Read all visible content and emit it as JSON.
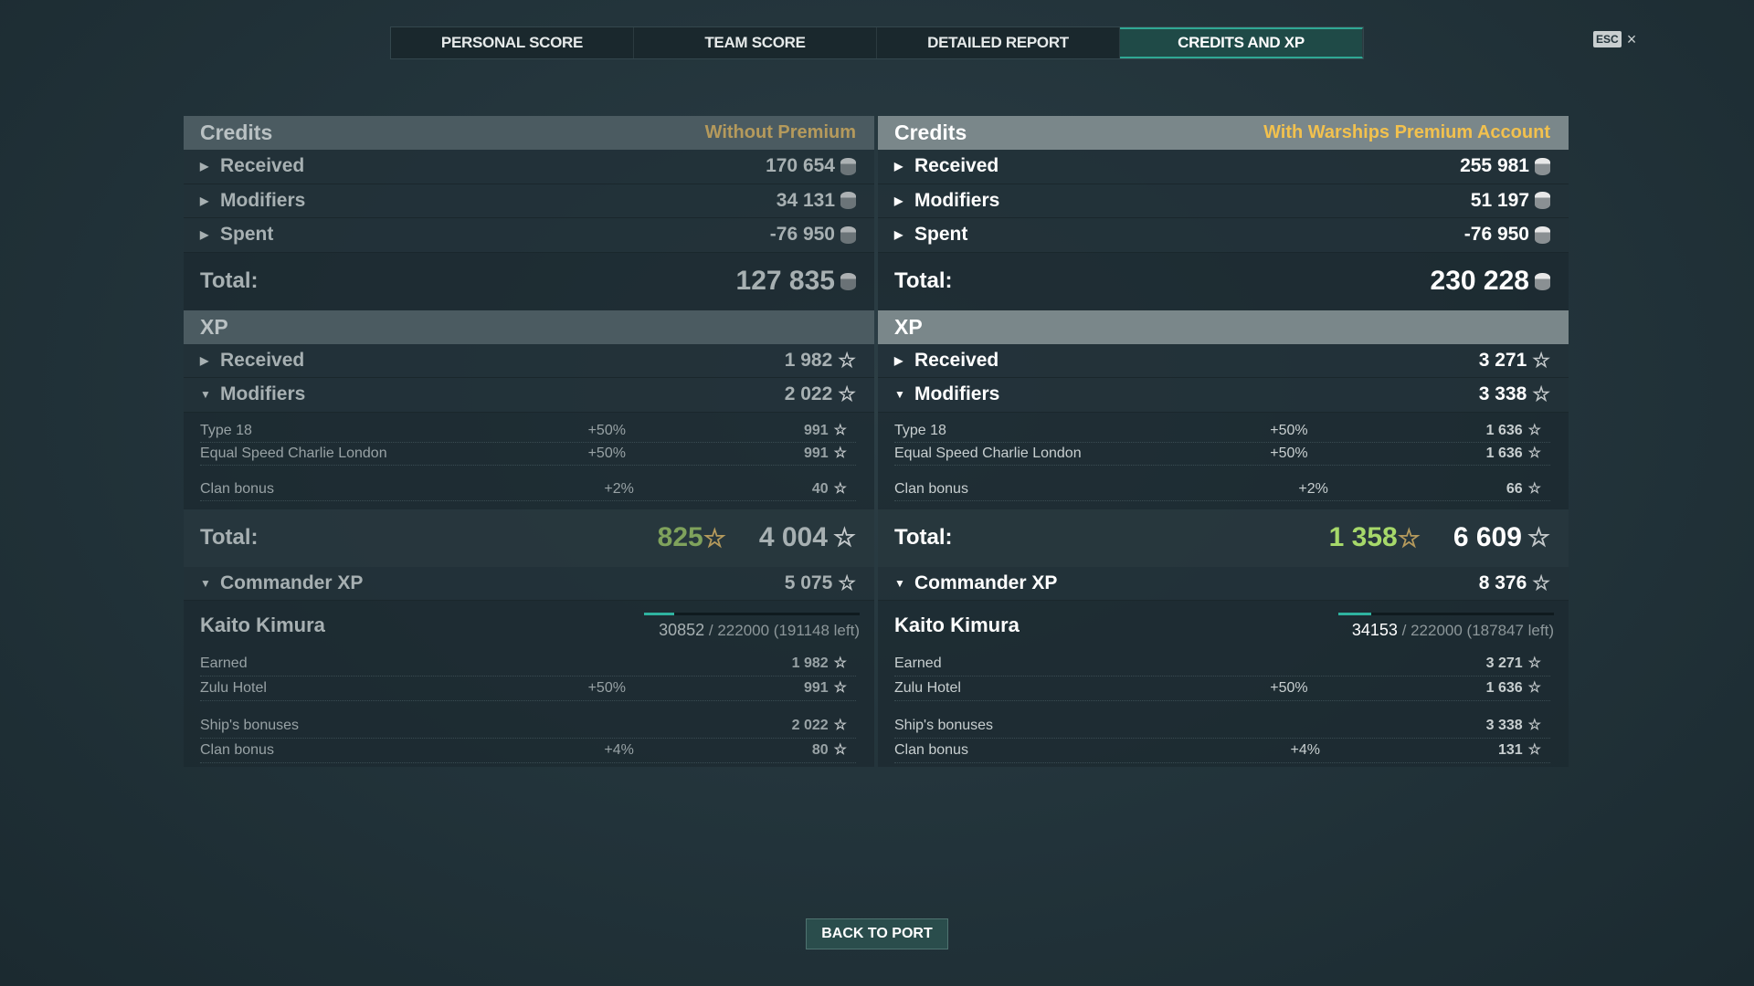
{
  "tabs": [
    {
      "label": "PERSONAL SCORE",
      "active": false
    },
    {
      "label": "TEAM SCORE",
      "active": false
    },
    {
      "label": "DETAILED REPORT",
      "active": false
    },
    {
      "label": "CREDITS AND XP",
      "active": true
    }
  ],
  "esc": {
    "key": "ESC",
    "close": "×"
  },
  "panels": [
    {
      "side": "left",
      "credits": {
        "title": "Credits",
        "account": "Without Premium",
        "rows": [
          {
            "label": "Received",
            "value": "170 654"
          },
          {
            "label": "Modifiers",
            "value": "34 131"
          },
          {
            "label": "Spent",
            "value": "-76 950"
          }
        ],
        "total_label": "Total:",
        "total": "127 835"
      },
      "xp": {
        "title": "XP",
        "rows": [
          {
            "label": "Received",
            "value": "1 982",
            "expanded": false
          },
          {
            "label": "Modifiers",
            "value": "2 022",
            "expanded": true
          }
        ],
        "modifiers": [
          {
            "label": "Type 18",
            "pct": "+50%",
            "value": "991"
          },
          {
            "label": "Equal Speed Charlie London",
            "pct": "+50%",
            "value": "991"
          },
          {
            "label": "Clan bonus",
            "pct": "+2%",
            "value": "40",
            "gap": true
          }
        ],
        "total_label": "Total:",
        "free_xp": "825",
        "total": "4 004"
      },
      "commander": {
        "label": "Commander XP",
        "value": "5 075",
        "name": "Kaito Kimura",
        "current": "30852",
        "rest": " / 222000 (191148 left)",
        "progress": 0.139,
        "rows": [
          {
            "label": "Earned",
            "pct": "",
            "value": "1 982"
          },
          {
            "label": "Zulu Hotel",
            "pct": "+50%",
            "value": "991"
          },
          {
            "label": "Ship's bonuses",
            "pct": "",
            "value": "2 022",
            "gap": true
          },
          {
            "label": "Clan bonus",
            "pct": "+4%",
            "value": "80"
          }
        ]
      }
    },
    {
      "side": "right",
      "credits": {
        "title": "Credits",
        "account": "With Warships Premium Account",
        "rows": [
          {
            "label": "Received",
            "value": "255 981"
          },
          {
            "label": "Modifiers",
            "value": "51 197"
          },
          {
            "label": "Spent",
            "value": "-76 950"
          }
        ],
        "total_label": "Total:",
        "total": "230 228"
      },
      "xp": {
        "title": "XP",
        "rows": [
          {
            "label": "Received",
            "value": "3 271",
            "expanded": false
          },
          {
            "label": "Modifiers",
            "value": "3 338",
            "expanded": true
          }
        ],
        "modifiers": [
          {
            "label": "Type 18",
            "pct": "+50%",
            "value": "1 636"
          },
          {
            "label": "Equal Speed Charlie London",
            "pct": "+50%",
            "value": "1 636"
          },
          {
            "label": "Clan bonus",
            "pct": "+2%",
            "value": "66",
            "gap": true
          }
        ],
        "total_label": "Total:",
        "free_xp": "1 358",
        "total": "6 609"
      },
      "commander": {
        "label": "Commander XP",
        "value": "8 376",
        "name": "Kaito Kimura",
        "current": "34153",
        "rest": " / 222000 (187847 left)",
        "progress": 0.154,
        "rows": [
          {
            "label": "Earned",
            "pct": "",
            "value": "3 271"
          },
          {
            "label": "Zulu Hotel",
            "pct": "+50%",
            "value": "1 636"
          },
          {
            "label": "Ship's bonuses",
            "pct": "",
            "value": "3 338",
            "gap": true
          },
          {
            "label": "Clan bonus",
            "pct": "+4%",
            "value": "131"
          }
        ]
      }
    }
  ],
  "back_button": "BACK TO PORT",
  "colors": {
    "accent": "#2fa894",
    "premium": "#f2c14e",
    "free_xp": "#a6d86a"
  }
}
